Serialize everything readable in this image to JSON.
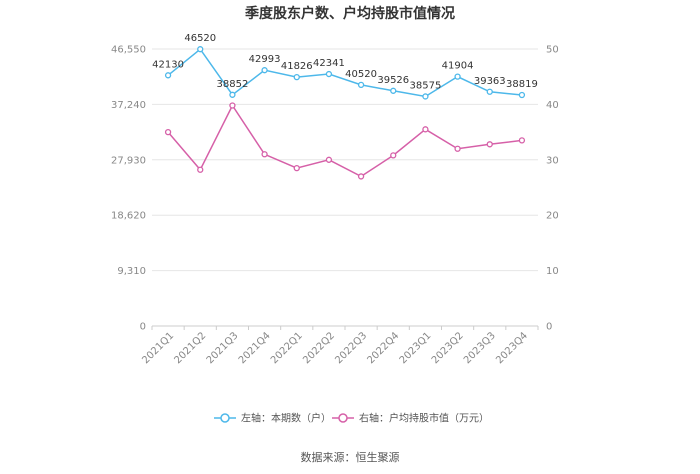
{
  "chart_data": {
    "type": "line",
    "title": "季度股东户数、户均持股市值情况",
    "categories": [
      "2021Q1",
      "2021Q2",
      "2021Q3",
      "2021Q4",
      "2022Q1",
      "2022Q2",
      "2022Q3",
      "2022Q4",
      "2023Q1",
      "2023Q2",
      "2023Q3",
      "2023Q4"
    ],
    "left_axis": {
      "min": 0,
      "max": 46550,
      "ticks": [
        0,
        9310,
        18620,
        27930,
        37240,
        46550
      ],
      "tick_labels": [
        "0",
        "9,310",
        "18,620",
        "27,930",
        "37,240",
        "46,550"
      ]
    },
    "right_axis": {
      "min": 0,
      "max": 50,
      "ticks": [
        0,
        10,
        20,
        30,
        40,
        50
      ],
      "tick_labels": [
        "0",
        "10",
        "20",
        "30",
        "40",
        "50"
      ]
    },
    "series": [
      {
        "name": "左轴：本期数（户）",
        "axis": "left",
        "color": "#4db8ea",
        "values": [
          42130,
          46520,
          38852,
          42993,
          41826,
          42341,
          40520,
          39526,
          38575,
          41904,
          39363,
          38819
        ],
        "labels": [
          "42130",
          "46520",
          "38852",
          "42993",
          "41826",
          "42341",
          "40520",
          "39526",
          "38575",
          "41904",
          "39363",
          "38819"
        ]
      },
      {
        "name": "右轴：户均持股市值（万元）",
        "axis": "right",
        "color": "#d660a8",
        "values": [
          35.0,
          28.2,
          39.8,
          31.0,
          28.5,
          30.0,
          27.0,
          30.8,
          35.5,
          32.0,
          32.8,
          33.5
        ]
      }
    ],
    "grid": true,
    "legend_position": "bottom"
  },
  "source": "数据来源：恒生聚源"
}
